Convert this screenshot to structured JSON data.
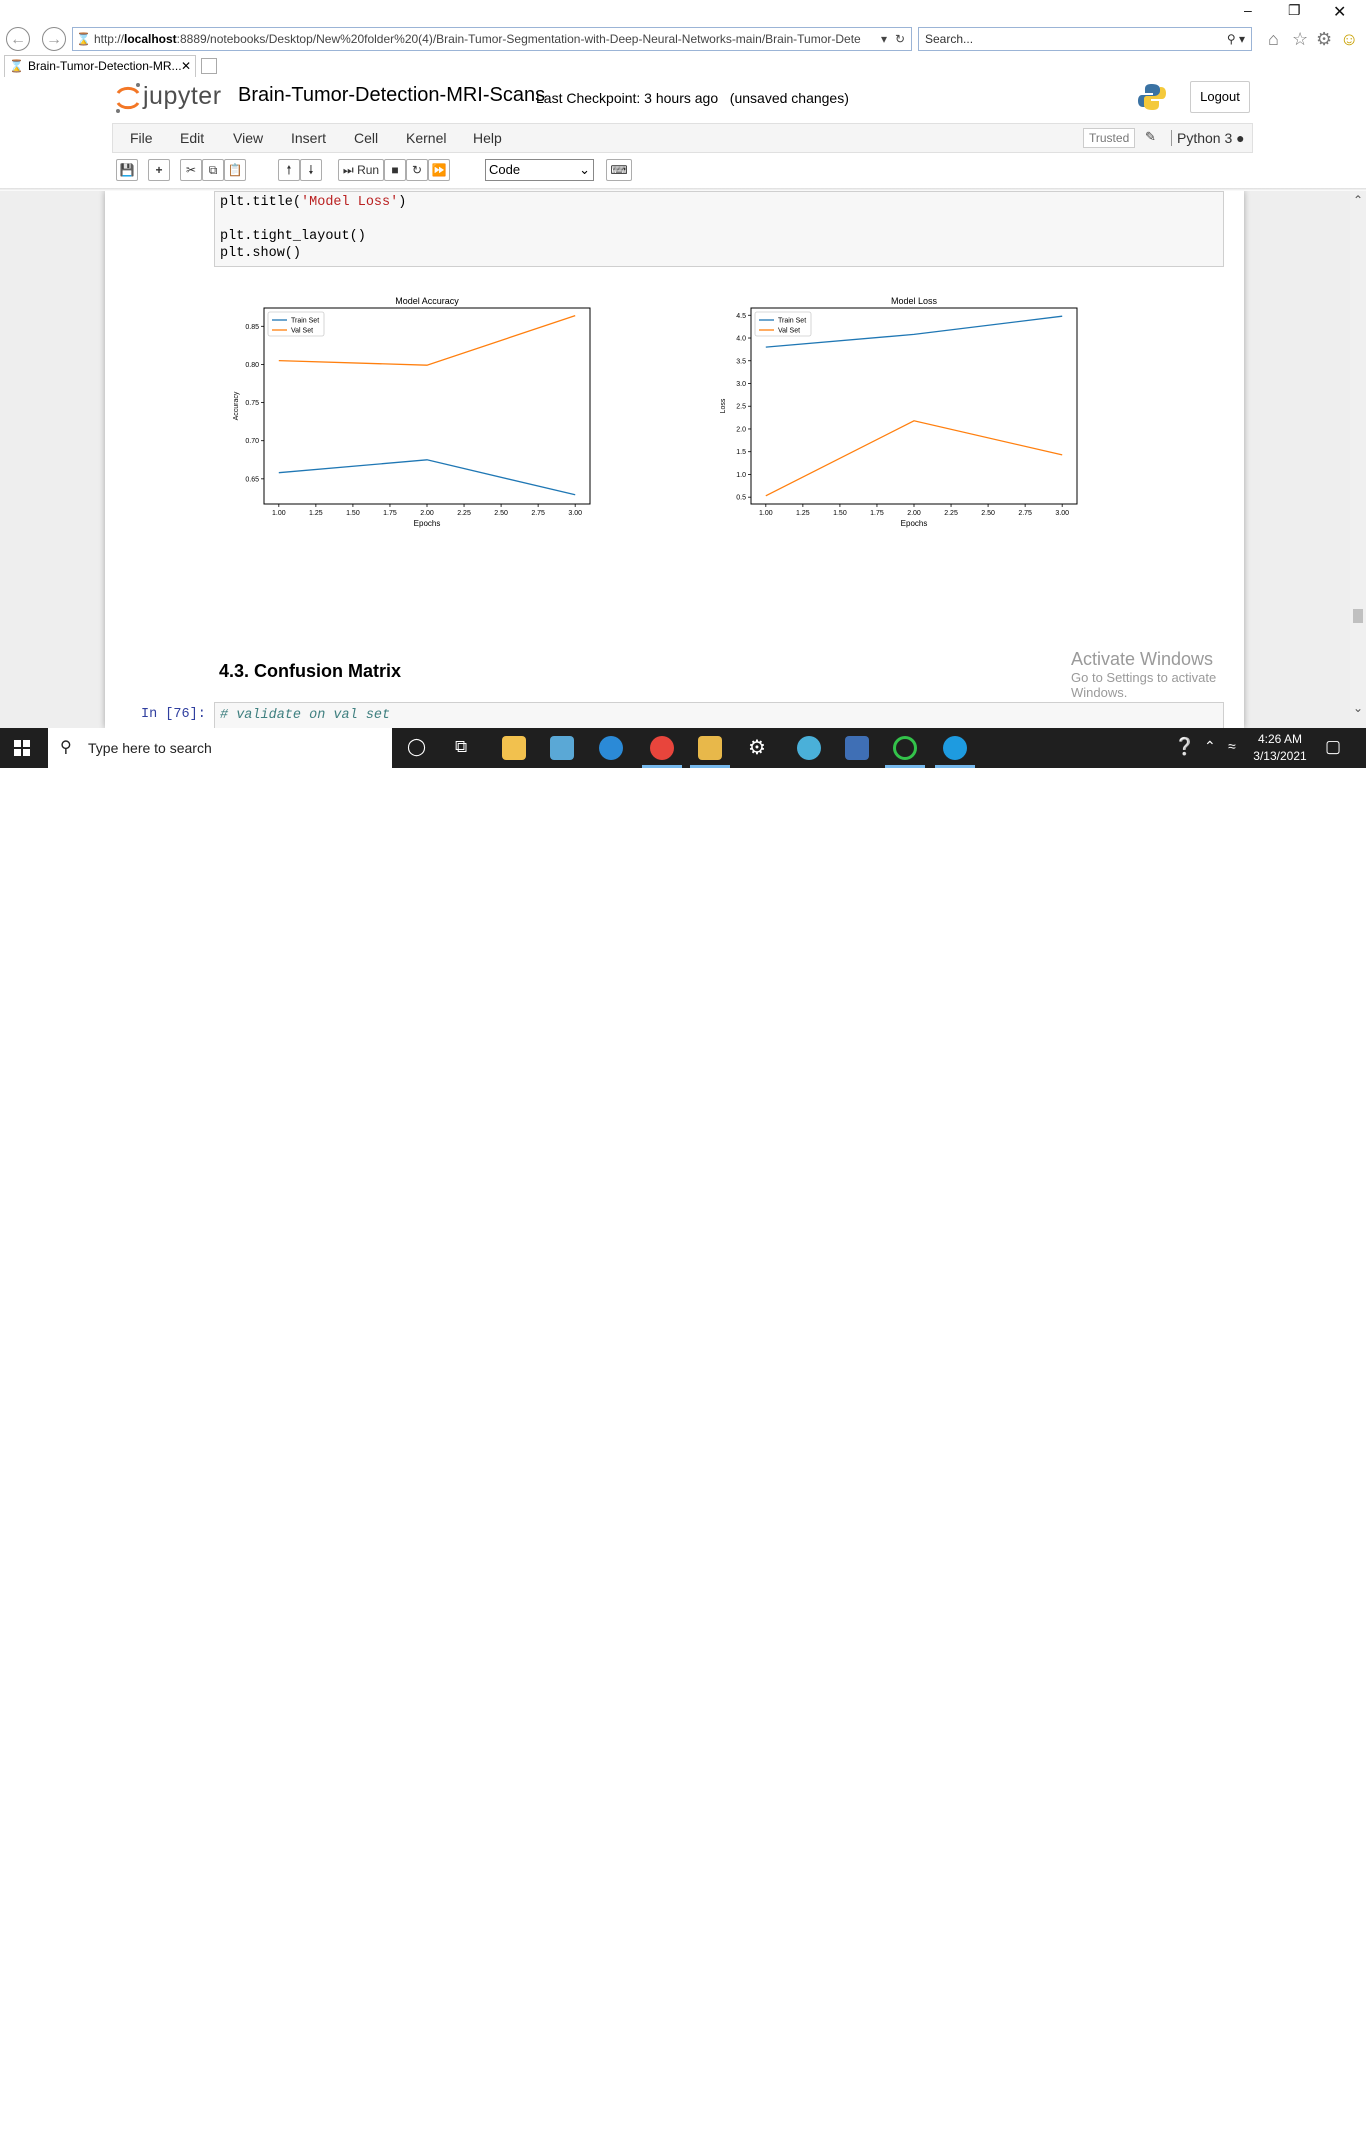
{
  "browser": {
    "url_prefix": "http://",
    "url_host": "localhost",
    "url_rest": ":8889/notebooks/Desktop/New%20folder%20(4)/Brain-Tumor-Segmentation-with-Deep-Neural-Networks-main/Brain-Tumor-Dete",
    "search_placeholder": "Search...",
    "tab_title": "Brain-Tumor-Detection-MR..."
  },
  "jupyter": {
    "logo_text": "jupyter",
    "notebook_name": "Brain-Tumor-Detection-MRI-Scans",
    "checkpoint": "Last Checkpoint: 3 hours ago",
    "status": "(unsaved changes)",
    "logout": "Logout",
    "menu": [
      "File",
      "Edit",
      "View",
      "Insert",
      "Cell",
      "Kernel",
      "Help"
    ],
    "trusted": "Trusted",
    "kernel": "Python 3",
    "run_label": "Run",
    "cell_type": "Code"
  },
  "cells": {
    "code_lines": [
      "plt.title('Model Loss')",
      "",
      "plt.tight_layout()",
      "plt.show()"
    ],
    "title_prefix": "plt.title(",
    "title_string": "'Model Loss'",
    "title_suffix": ")",
    "line3": "plt.tight_layout()",
    "line4": "plt.show()",
    "heading": "4.3. Confusion Matrix",
    "next_prompt": "In [76]:",
    "next_comment": "# validate on val set"
  },
  "chart_data": [
    {
      "type": "line",
      "title": "Model Accuracy",
      "xlabel": "Epochs",
      "ylabel": "Accuracy",
      "x": [
        1,
        2,
        3
      ],
      "xticks": [
        "1.00",
        "1.25",
        "1.50",
        "1.75",
        "2.00",
        "2.25",
        "2.50",
        "2.75",
        "3.00"
      ],
      "yticks": [
        "0.65",
        "0.70",
        "0.75",
        "0.80",
        "0.85"
      ],
      "xlim": [
        0.9,
        3.1
      ],
      "ylim": [
        0.617,
        0.874
      ],
      "legend": "top-left",
      "series": [
        {
          "name": "Train Set",
          "values": [
            0.658,
            0.675,
            0.629
          ],
          "color": "#1f77b4"
        },
        {
          "name": "Val Set",
          "values": [
            0.805,
            0.799,
            0.864
          ],
          "color": "#ff7f0e"
        }
      ]
    },
    {
      "type": "line",
      "title": "Model Loss",
      "xlabel": "Epochs",
      "ylabel": "Loss",
      "x": [
        1,
        2,
        3
      ],
      "xticks": [
        "1.00",
        "1.25",
        "1.50",
        "1.75",
        "2.00",
        "2.25",
        "2.50",
        "2.75",
        "3.00"
      ],
      "yticks": [
        "0.5",
        "1.0",
        "1.5",
        "2.0",
        "2.5",
        "3.0",
        "3.5",
        "4.0",
        "4.5"
      ],
      "xlim": [
        0.9,
        3.1
      ],
      "ylim": [
        0.35,
        4.66
      ],
      "legend": "top-left",
      "series": [
        {
          "name": "Train Set",
          "values": [
            3.8,
            4.08,
            4.48
          ],
          "color": "#1f77b4"
        },
        {
          "name": "Val Set",
          "values": [
            0.53,
            2.18,
            1.43
          ],
          "color": "#ff7f0e"
        }
      ]
    }
  ],
  "watermark": {
    "line1": "Activate Windows",
    "line2": "Go to Settings to activate Windows."
  },
  "taskbar": {
    "search_placeholder": "Type here to search",
    "time": "4:26 AM",
    "date": "3/13/2021"
  }
}
